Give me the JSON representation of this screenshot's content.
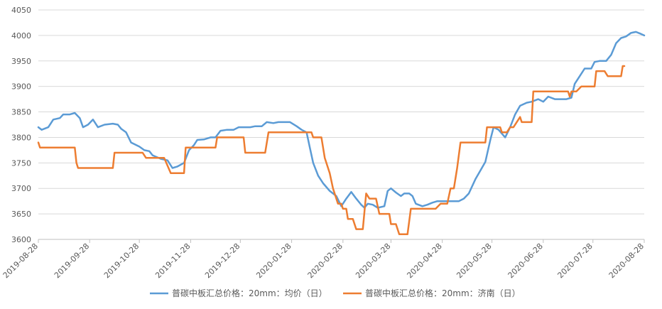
{
  "chart_data": {
    "type": "line",
    "title": "",
    "xlabel": "",
    "ylabel": "",
    "ylim": [
      3600,
      4050
    ],
    "yticks": [
      3600,
      3650,
      3700,
      3750,
      3800,
      3850,
      3900,
      3950,
      4000,
      4050
    ],
    "xticks": [
      "2019-08-28",
      "2019-09-28",
      "2019-10-28",
      "2019-11-28",
      "2019-12-28",
      "2020-01-28",
      "2020-02-28",
      "2020-03-28",
      "2020-04-28",
      "2020-05-28",
      "2020-06-28",
      "2020-07-28",
      "2020-08-28"
    ],
    "grid": "horizontal",
    "legend_position": "bottom",
    "series": [
      {
        "name": "普碳中板汇总价格：20mm：均价（日）",
        "color": "#5b9bd5",
        "points": [
          [
            "2019-08-28",
            3820
          ],
          [
            "2019-08-30",
            3815
          ],
          [
            "2019-09-03",
            3820
          ],
          [
            "2019-09-06",
            3835
          ],
          [
            "2019-09-10",
            3838
          ],
          [
            "2019-09-12",
            3845
          ],
          [
            "2019-09-16",
            3845
          ],
          [
            "2019-09-19",
            3848
          ],
          [
            "2019-09-22",
            3838
          ],
          [
            "2019-09-24",
            3820
          ],
          [
            "2019-09-27",
            3825
          ],
          [
            "2019-09-30",
            3835
          ],
          [
            "2019-10-03",
            3820
          ],
          [
            "2019-10-07",
            3825
          ],
          [
            "2019-10-12",
            3827
          ],
          [
            "2019-10-15",
            3825
          ],
          [
            "2019-10-17",
            3817
          ],
          [
            "2019-10-20",
            3810
          ],
          [
            "2019-10-23",
            3790
          ],
          [
            "2019-10-28",
            3782
          ],
          [
            "2019-10-31",
            3775
          ],
          [
            "2019-11-03",
            3773
          ],
          [
            "2019-11-05",
            3765
          ],
          [
            "2019-11-10",
            3758
          ],
          [
            "2019-11-14",
            3755
          ],
          [
            "2019-11-17",
            3740
          ],
          [
            "2019-11-20",
            3743
          ],
          [
            "2019-11-24",
            3750
          ],
          [
            "2019-11-27",
            3775
          ],
          [
            "2019-11-30",
            3785
          ],
          [
            "2019-12-02",
            3795
          ],
          [
            "2019-12-06",
            3796
          ],
          [
            "2019-12-10",
            3800
          ],
          [
            "2019-12-13",
            3800
          ],
          [
            "2019-12-16",
            3813
          ],
          [
            "2019-12-20",
            3815
          ],
          [
            "2019-12-24",
            3815
          ],
          [
            "2019-12-27",
            3820
          ],
          [
            "2019-12-31",
            3820
          ],
          [
            "2020-01-03",
            3820
          ],
          [
            "2020-01-06",
            3822
          ],
          [
            "2020-01-10",
            3822
          ],
          [
            "2020-01-13",
            3830
          ],
          [
            "2020-01-17",
            3828
          ],
          [
            "2020-01-20",
            3830
          ],
          [
            "2020-01-24",
            3830
          ],
          [
            "2020-01-27",
            3830
          ],
          [
            "2020-01-31",
            3822
          ],
          [
            "2020-02-03",
            3815
          ],
          [
            "2020-02-06",
            3810
          ],
          [
            "2020-02-08",
            3780
          ],
          [
            "2020-02-10",
            3750
          ],
          [
            "2020-02-13",
            3725
          ],
          [
            "2020-02-16",
            3710
          ],
          [
            "2020-02-20",
            3695
          ],
          [
            "2020-02-24",
            3685
          ],
          [
            "2020-02-27",
            3665
          ],
          [
            "2020-03-01",
            3680
          ],
          [
            "2020-03-04",
            3693
          ],
          [
            "2020-03-07",
            3680
          ],
          [
            "2020-03-10",
            3668
          ],
          [
            "2020-03-12",
            3662
          ],
          [
            "2020-03-14",
            3670
          ],
          [
            "2020-03-17",
            3668
          ],
          [
            "2020-03-20",
            3662
          ],
          [
            "2020-03-24",
            3665
          ],
          [
            "2020-03-26",
            3695
          ],
          [
            "2020-03-28",
            3700
          ],
          [
            "2020-03-31",
            3692
          ],
          [
            "2020-04-03",
            3685
          ],
          [
            "2020-04-05",
            3690
          ],
          [
            "2020-04-08",
            3690
          ],
          [
            "2020-04-10",
            3685
          ],
          [
            "2020-04-12",
            3670
          ],
          [
            "2020-04-16",
            3665
          ],
          [
            "2020-04-19",
            3668
          ],
          [
            "2020-04-22",
            3672
          ],
          [
            "2020-04-25",
            3675
          ],
          [
            "2020-04-28",
            3675
          ],
          [
            "2020-05-01",
            3675
          ],
          [
            "2020-05-05",
            3675
          ],
          [
            "2020-05-08",
            3675
          ],
          [
            "2020-05-11",
            3680
          ],
          [
            "2020-05-14",
            3690
          ],
          [
            "2020-05-18",
            3718
          ],
          [
            "2020-05-21",
            3735
          ],
          [
            "2020-05-24",
            3752
          ],
          [
            "2020-05-27",
            3795
          ],
          [
            "2020-05-29",
            3820
          ],
          [
            "2020-06-01",
            3815
          ],
          [
            "2020-06-05",
            3800
          ],
          [
            "2020-06-08",
            3820
          ],
          [
            "2020-06-11",
            3845
          ],
          [
            "2020-06-14",
            3862
          ],
          [
            "2020-06-18",
            3868
          ],
          [
            "2020-06-21",
            3870
          ],
          [
            "2020-06-25",
            3875
          ],
          [
            "2020-06-28",
            3870
          ],
          [
            "2020-07-01",
            3880
          ],
          [
            "2020-07-05",
            3875
          ],
          [
            "2020-07-09",
            3875
          ],
          [
            "2020-07-12",
            3875
          ],
          [
            "2020-07-15",
            3878
          ],
          [
            "2020-07-17",
            3905
          ],
          [
            "2020-07-20",
            3920
          ],
          [
            "2020-07-23",
            3935
          ],
          [
            "2020-07-27",
            3935
          ],
          [
            "2020-07-29",
            3948
          ],
          [
            "2020-08-01",
            3950
          ],
          [
            "2020-08-05",
            3950
          ],
          [
            "2020-08-08",
            3962
          ],
          [
            "2020-08-11",
            3985
          ],
          [
            "2020-08-14",
            3995
          ],
          [
            "2020-08-17",
            3998
          ],
          [
            "2020-08-20",
            4005
          ],
          [
            "2020-08-23",
            4007
          ],
          [
            "2020-08-26",
            4003
          ],
          [
            "2020-08-28",
            4000
          ]
        ]
      },
      {
        "name": "普碳中板汇总价格：20mm：济南（日）",
        "color": "#ed7d31",
        "points": [
          [
            "2019-08-28",
            3790
          ],
          [
            "2019-08-29",
            3780
          ],
          [
            "2019-09-19",
            3780
          ],
          [
            "2019-09-20",
            3750
          ],
          [
            "2019-09-21",
            3740
          ],
          [
            "2019-10-12",
            3740
          ],
          [
            "2019-10-13",
            3770
          ],
          [
            "2019-10-30",
            3770
          ],
          [
            "2019-11-01",
            3760
          ],
          [
            "2019-11-12",
            3760
          ],
          [
            "2019-11-16",
            3730
          ],
          [
            "2019-11-24",
            3730
          ],
          [
            "2019-11-25",
            3780
          ],
          [
            "2019-12-13",
            3780
          ],
          [
            "2019-12-14",
            3800
          ],
          [
            "2019-12-30",
            3800
          ],
          [
            "2019-12-31",
            3770
          ],
          [
            "2020-01-12",
            3770
          ],
          [
            "2020-01-14",
            3810
          ],
          [
            "2020-02-09",
            3810
          ],
          [
            "2020-02-10",
            3800
          ],
          [
            "2020-02-15",
            3800
          ],
          [
            "2020-02-17",
            3760
          ],
          [
            "2020-02-20",
            3730
          ],
          [
            "2020-02-22",
            3700
          ],
          [
            "2020-02-25",
            3670
          ],
          [
            "2020-02-27",
            3670
          ],
          [
            "2020-02-28",
            3660
          ],
          [
            "2020-03-01",
            3660
          ],
          [
            "2020-03-02",
            3640
          ],
          [
            "2020-03-05",
            3640
          ],
          [
            "2020-03-07",
            3620
          ],
          [
            "2020-03-11",
            3620
          ],
          [
            "2020-03-13",
            3690
          ],
          [
            "2020-03-15",
            3680
          ],
          [
            "2020-03-19",
            3680
          ],
          [
            "2020-03-21",
            3650
          ],
          [
            "2020-03-27",
            3650
          ],
          [
            "2020-03-28",
            3630
          ],
          [
            "2020-03-31",
            3630
          ],
          [
            "2020-04-02",
            3610
          ],
          [
            "2020-04-07",
            3610
          ],
          [
            "2020-04-09",
            3660
          ],
          [
            "2020-04-24",
            3660
          ],
          [
            "2020-04-27",
            3670
          ],
          [
            "2020-05-01",
            3670
          ],
          [
            "2020-05-03",
            3700
          ],
          [
            "2020-05-05",
            3700
          ],
          [
            "2020-05-07",
            3740
          ],
          [
            "2020-05-09",
            3790
          ],
          [
            "2020-05-24",
            3790
          ],
          [
            "2020-05-25",
            3820
          ],
          [
            "2020-06-02",
            3820
          ],
          [
            "2020-06-03",
            3810
          ],
          [
            "2020-06-06",
            3810
          ],
          [
            "2020-06-08",
            3820
          ],
          [
            "2020-06-10",
            3820
          ],
          [
            "2020-06-14",
            3840
          ],
          [
            "2020-06-15",
            3830
          ],
          [
            "2020-06-21",
            3830
          ],
          [
            "2020-06-22",
            3890
          ],
          [
            "2020-07-13",
            3890
          ],
          [
            "2020-07-14",
            3880
          ],
          [
            "2020-07-15",
            3890
          ],
          [
            "2020-07-18",
            3890
          ],
          [
            "2020-07-21",
            3900
          ],
          [
            "2020-07-29",
            3900
          ],
          [
            "2020-07-30",
            3930
          ],
          [
            "2020-08-04",
            3930
          ],
          [
            "2020-08-06",
            3920
          ],
          [
            "2020-08-14",
            3920
          ],
          [
            "2020-08-15",
            3940
          ],
          [
            "2020-08-16",
            3940
          ]
        ]
      }
    ]
  }
}
